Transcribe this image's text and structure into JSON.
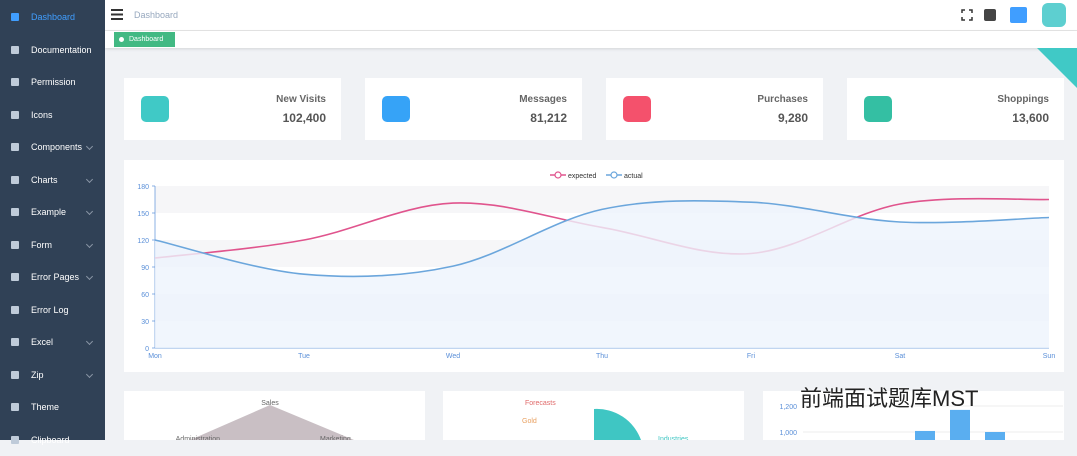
{
  "sidebar": {
    "items": [
      "Dashboard",
      "Documentation",
      "Permission",
      "Icons",
      "Components",
      "Charts",
      "Example",
      "Form",
      "Error Pages",
      "Error Log",
      "Excel",
      "Zip",
      "Theme",
      "Clipboard"
    ],
    "active": 0,
    "expandable": [
      4,
      5,
      6,
      7,
      8,
      10,
      11
    ]
  },
  "header": {
    "breadcrumb": "Dashboard",
    "tag": "Dashboard"
  },
  "cards": [
    {
      "label": "New Visits",
      "value": "102,400",
      "color": "#40c9c6"
    },
    {
      "label": "Messages",
      "value": "81,212",
      "color": "#36a3f7"
    },
    {
      "label": "Purchases",
      "value": "9,280",
      "color": "#f4516c"
    },
    {
      "label": "Shoppings",
      "value": "13,600",
      "color": "#34bfa3"
    }
  ],
  "line_chart": {
    "type": "line",
    "categories": [
      "Mon",
      "Tue",
      "Wed",
      "Thu",
      "Fri",
      "Sat",
      "Sun"
    ],
    "series": [
      {
        "name": "expected",
        "color": "#e0548d",
        "values": [
          100,
          120,
          161,
          134,
          105,
          160,
          165
        ]
      },
      {
        "name": "actual",
        "color": "#6ba6dc",
        "values": [
          120,
          82,
          91,
          154,
          162,
          140,
          145
        ]
      }
    ],
    "ylim": [
      0,
      180
    ],
    "yticks": [
      0,
      30,
      60,
      90,
      120,
      150,
      180
    ]
  },
  "bottom": {
    "radar_labels": [
      "Sales",
      "Administration",
      "Marketing"
    ],
    "pie_labels": [
      "Forecasts",
      "Gold",
      "Industries"
    ],
    "bar_chart": {
      "type": "bar",
      "color": "#5aaef0",
      "values": [
        1008,
        1170,
        1000
      ],
      "yticks": [
        {
          "value": 1000,
          "label": "1,000"
        },
        {
          "value": 1200,
          "label": "1,200"
        }
      ]
    }
  },
  "watermark": "前端面试题库MST"
}
